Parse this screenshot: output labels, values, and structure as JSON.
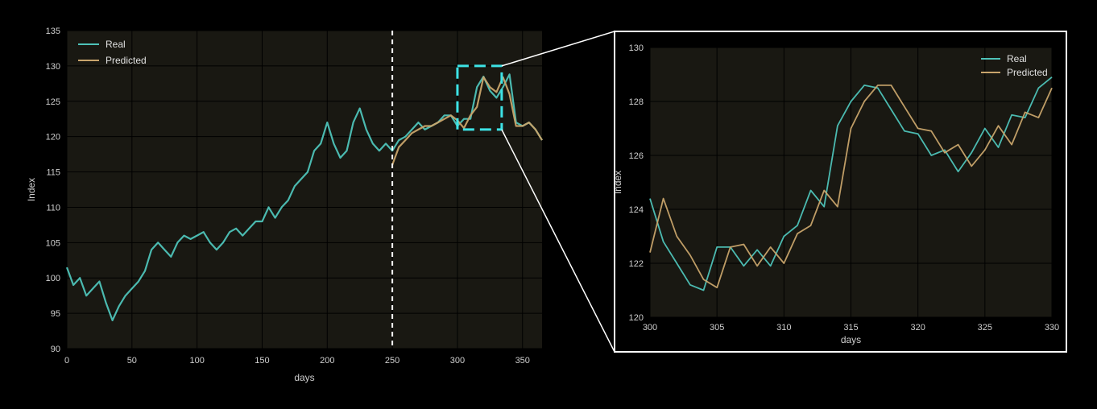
{
  "colors": {
    "background": "#000000",
    "plot_bg": "#191812",
    "real": "#4ec3b9",
    "predicted": "#c8a46c",
    "highlight": "#3de3e6",
    "divider": "#ffffff",
    "connector": "#ffffff"
  },
  "chart_data": [
    {
      "type": "line",
      "xlabel": "days",
      "ylabel": "Index",
      "xlim": [
        0,
        365
      ],
      "ylim": [
        90,
        135
      ],
      "xticks": [
        "0",
        "50",
        "100",
        "150",
        "200",
        "250",
        "300",
        "350"
      ],
      "yticks": [
        "90",
        "95",
        "100",
        "105",
        "110",
        "115",
        "120",
        "125",
        "130",
        "135"
      ],
      "grid": true,
      "legend_position": "top-left",
      "split_day": 250,
      "highlight_box": {
        "x": [
          300,
          334
        ],
        "y": [
          121,
          130
        ]
      },
      "series": [
        {
          "name": "Real",
          "x": [
            0,
            5,
            10,
            15,
            20,
            25,
            30,
            35,
            40,
            45,
            50,
            55,
            60,
            65,
            70,
            75,
            80,
            85,
            90,
            95,
            100,
            105,
            110,
            115,
            120,
            125,
            130,
            135,
            140,
            145,
            150,
            155,
            160,
            165,
            170,
            175,
            180,
            185,
            190,
            195,
            200,
            205,
            210,
            215,
            220,
            225,
            230,
            235,
            240,
            245,
            250,
            255,
            260,
            265,
            270,
            275,
            280,
            285,
            290,
            295,
            300,
            305,
            310,
            315,
            320,
            325,
            330,
            335,
            340,
            345,
            350,
            355,
            360,
            365
          ],
          "y": [
            101.5,
            99,
            100,
            97.5,
            98.5,
            99.5,
            96.5,
            94,
            96,
            97.5,
            98.5,
            99.5,
            101,
            104,
            105,
            104,
            103,
            105,
            106,
            105.5,
            106,
            106.5,
            105,
            104,
            105,
            106.5,
            107,
            106,
            107,
            108,
            108,
            110,
            108.5,
            110,
            111,
            113,
            114,
            115,
            118,
            119,
            122,
            119,
            117,
            118,
            122,
            124,
            121,
            119,
            118,
            119,
            118,
            119.5,
            120,
            121,
            122,
            121,
            121.5,
            122,
            123,
            123,
            121.5,
            122.5,
            122.5,
            127,
            128.5,
            126.5,
            125.5,
            127,
            128.8,
            122,
            121.5,
            122,
            121,
            119.5
          ]
        },
        {
          "name": "Predicted",
          "x": [
            250,
            255,
            260,
            265,
            270,
            275,
            280,
            285,
            290,
            295,
            300,
            305,
            310,
            315,
            320,
            325,
            330,
            335,
            340,
            345,
            350,
            355,
            360,
            365
          ],
          "y": [
            116,
            118.5,
            119.5,
            120.5,
            121,
            121.5,
            121.5,
            122,
            122.5,
            123,
            122.3,
            121.2,
            123,
            124.2,
            128.4,
            127,
            126.3,
            128.4,
            126,
            121.5,
            121.5,
            122,
            121,
            119.5
          ]
        }
      ]
    },
    {
      "type": "line",
      "xlabel": "days",
      "ylabel": "Index",
      "xlim": [
        300,
        330
      ],
      "ylim": [
        120,
        130
      ],
      "xticks": [
        "300",
        "305",
        "310",
        "315",
        "320",
        "325",
        "330"
      ],
      "yticks": [
        "120",
        "122",
        "124",
        "126",
        "128",
        "130"
      ],
      "grid": true,
      "legend_position": "top-right",
      "series": [
        {
          "name": "Real",
          "x": [
            300,
            301,
            302,
            303,
            304,
            305,
            306,
            307,
            308,
            309,
            310,
            311,
            312,
            313,
            314,
            315,
            316,
            317,
            318,
            319,
            320,
            321,
            322,
            323,
            324,
            325,
            326,
            327,
            328,
            329,
            330
          ],
          "y": [
            124.4,
            122.8,
            122.0,
            121.2,
            121.0,
            122.6,
            122.6,
            121.9,
            122.5,
            121.9,
            123.0,
            123.4,
            124.7,
            124.1,
            127.1,
            128.0,
            128.6,
            128.5,
            127.7,
            126.9,
            126.8,
            126.0,
            126.2,
            125.4,
            126.1,
            127.0,
            126.3,
            127.5,
            127.4,
            128.5,
            128.9
          ]
        },
        {
          "name": "Predicted",
          "x": [
            300,
            301,
            302,
            303,
            304,
            305,
            306,
            307,
            308,
            309,
            310,
            311,
            312,
            313,
            314,
            315,
            316,
            317,
            318,
            319,
            320,
            321,
            322,
            323,
            324,
            325,
            326,
            327,
            328,
            329,
            330
          ],
          "y": [
            122.4,
            124.4,
            123.0,
            122.3,
            121.4,
            121.1,
            122.6,
            122.7,
            121.9,
            122.6,
            122.0,
            123.1,
            123.4,
            124.7,
            124.1,
            127.0,
            128.0,
            128.6,
            128.6,
            127.8,
            127.0,
            126.9,
            126.1,
            126.4,
            125.6,
            126.2,
            127.1,
            126.4,
            127.6,
            127.4,
            128.5
          ]
        }
      ]
    }
  ]
}
